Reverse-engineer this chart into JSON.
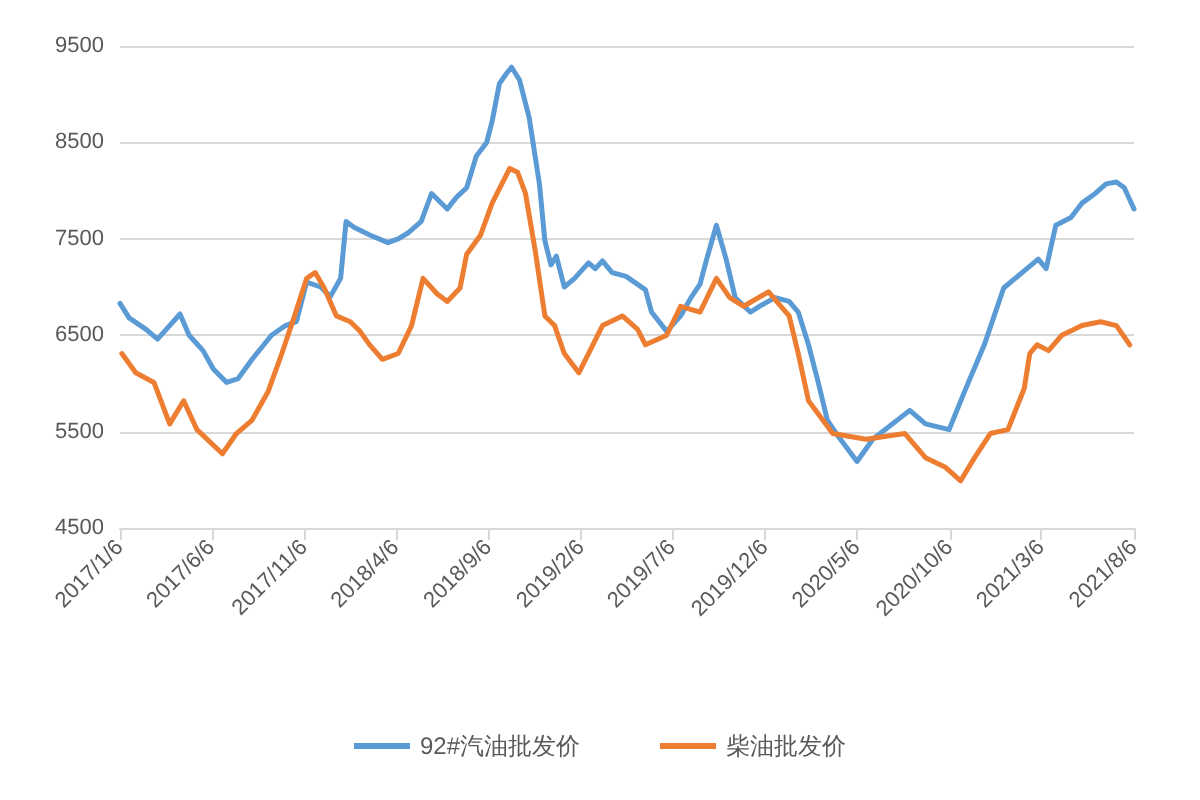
{
  "chart_data": {
    "type": "line",
    "legend": "bottom",
    "grid": "y",
    "marker": "none",
    "line_style": "solid",
    "ylim": [
      4500,
      9500
    ],
    "yticks": [
      4500,
      5500,
      6500,
      7500,
      8500,
      9500
    ],
    "xlim": [
      "2017-01-06",
      "2021-08-06"
    ],
    "xticks": [
      {
        "value": "2017-01-06",
        "label": "2017/1/6"
      },
      {
        "value": "2017-06-06",
        "label": "2017/6/6"
      },
      {
        "value": "2017-11-06",
        "label": "2017/11/6"
      },
      {
        "value": "2018-04-06",
        "label": "2018/4/6"
      },
      {
        "value": "2018-09-06",
        "label": "2018/9/6"
      },
      {
        "value": "2019-02-06",
        "label": "2019/2/6"
      },
      {
        "value": "2019-07-06",
        "label": "2019/7/6"
      },
      {
        "value": "2019-12-06",
        "label": "2019/12/6"
      },
      {
        "value": "2020-05-06",
        "label": "2020/5/6"
      },
      {
        "value": "2020-10-06",
        "label": "2020/10/6"
      },
      {
        "value": "2021-03-06",
        "label": "2021/3/6"
      },
      {
        "value": "2021-08-06",
        "label": "2021/8/6"
      }
    ],
    "series": [
      {
        "name": "92#汽油批发价",
        "color": "#5b9bd5",
        "x": [
          "2017-01-06",
          "2017-01-21",
          "2017-02-18",
          "2017-03-09",
          "2017-04-15",
          "2017-04-30",
          "2017-05-23",
          "2017-06-09",
          "2017-07-01",
          "2017-07-20",
          "2017-08-12",
          "2017-09-13",
          "2017-10-06",
          "2017-10-24",
          "2017-11-10",
          "2017-12-03",
          "2017-12-19",
          "2018-01-05",
          "2018-01-14",
          "2018-01-27",
          "2018-02-22",
          "2018-03-24",
          "2018-04-10",
          "2018-04-26",
          "2018-05-18",
          "2018-06-04",
          "2018-06-30",
          "2018-07-15",
          "2018-08-01",
          "2018-08-17",
          "2018-09-03",
          "2018-09-12",
          "2018-09-24",
          "2018-10-05",
          "2018-10-14",
          "2018-10-27",
          "2018-11-12",
          "2018-11-29",
          "2018-12-08",
          "2018-12-18",
          "2018-12-27",
          "2019-01-09",
          "2019-01-26",
          "2019-02-18",
          "2019-03-01",
          "2019-03-13",
          "2019-03-29",
          "2019-04-21",
          "2019-05-23",
          "2019-06-02",
          "2019-06-27",
          "2019-07-20",
          "2019-08-06",
          "2019-08-21",
          "2019-09-01",
          "2019-09-17",
          "2019-10-03",
          "2019-10-18",
          "2019-11-12",
          "2019-11-27",
          "2019-12-23",
          "2020-01-15",
          "2020-01-30",
          "2020-02-16",
          "2020-03-03",
          "2020-03-18",
          "2020-04-04",
          "2020-05-06",
          "2020-06-01",
          "2020-08-01",
          "2020-08-27",
          "2020-10-05",
          "2020-10-30",
          "2020-12-02",
          "2021-01-03",
          "2021-03-01",
          "2021-03-14",
          "2021-03-30",
          "2021-04-24",
          "2021-05-12",
          "2021-06-03",
          "2021-06-21",
          "2021-07-08",
          "2021-07-21",
          "2021-08-06"
        ],
        "values": [
          6830,
          6680,
          6560,
          6460,
          6720,
          6500,
          6340,
          6150,
          6010,
          6050,
          6250,
          6500,
          6600,
          6640,
          7050,
          7000,
          6900,
          7090,
          7680,
          7620,
          7540,
          7460,
          7500,
          7560,
          7680,
          7970,
          7810,
          7930,
          8030,
          8360,
          8500,
          8720,
          9110,
          9210,
          9280,
          9150,
          8760,
          8070,
          7480,
          7230,
          7320,
          7000,
          7090,
          7250,
          7190,
          7270,
          7150,
          7110,
          6970,
          6740,
          6540,
          6700,
          6890,
          7030,
          7290,
          7640,
          7290,
          6890,
          6740,
          6800,
          6890,
          6850,
          6740,
          6400,
          6010,
          5620,
          5460,
          5190,
          5420,
          5720,
          5580,
          5520,
          5910,
          6400,
          6990,
          7290,
          7190,
          7640,
          7720,
          7870,
          7970,
          8070,
          8090,
          8030,
          7810
        ]
      },
      {
        "name": "柴油批发价",
        "color": "#ed7d31",
        "x": [
          "2017-01-09",
          "2017-02-01",
          "2017-03-03",
          "2017-03-29",
          "2017-04-21",
          "2017-05-13",
          "2017-06-24",
          "2017-07-17",
          "2017-08-12",
          "2017-09-07",
          "2017-09-30",
          "2017-10-21",
          "2017-11-10",
          "2017-11-24",
          "2017-12-09",
          "2017-12-29",
          "2018-01-21",
          "2018-02-06",
          "2018-02-22",
          "2018-03-15",
          "2018-04-10",
          "2018-05-02",
          "2018-05-21",
          "2018-06-13",
          "2018-06-30",
          "2018-07-21",
          "2018-08-01",
          "2018-08-24",
          "2018-09-12",
          "2018-09-28",
          "2018-10-11",
          "2018-10-24",
          "2018-11-06",
          "2018-11-22",
          "2018-12-08",
          "2018-12-24",
          "2019-01-09",
          "2019-02-02",
          "2019-02-18",
          "2019-03-13",
          "2019-04-15",
          "2019-05-10",
          "2019-05-23",
          "2019-06-27",
          "2019-07-20",
          "2019-08-21",
          "2019-09-17",
          "2019-10-09",
          "2019-11-01",
          "2019-12-12",
          "2020-01-15",
          "2020-01-30",
          "2020-02-16",
          "2020-03-27",
          "2020-05-21",
          "2020-07-24",
          "2020-08-27",
          "2020-09-29",
          "2020-10-24",
          "2020-11-16",
          "2020-12-12",
          "2021-01-10",
          "2021-02-06",
          "2021-02-15",
          "2021-02-27",
          "2021-03-18",
          "2021-04-09",
          "2021-05-12",
          "2021-06-12",
          "2021-07-08",
          "2021-07-30"
        ],
        "values": [
          6310,
          6110,
          6010,
          5580,
          5820,
          5520,
          5270,
          5480,
          5620,
          5910,
          6310,
          6700,
          7090,
          7150,
          6990,
          6700,
          6640,
          6540,
          6400,
          6250,
          6310,
          6600,
          7090,
          6930,
          6850,
          6990,
          7340,
          7540,
          7870,
          8070,
          8230,
          8190,
          7970,
          7380,
          6700,
          6600,
          6310,
          6110,
          6310,
          6600,
          6700,
          6560,
          6400,
          6500,
          6800,
          6740,
          7090,
          6890,
          6800,
          6950,
          6700,
          6310,
          5820,
          5480,
          5420,
          5480,
          5230,
          5130,
          4990,
          5230,
          5480,
          5520,
          5950,
          6310,
          6400,
          6340,
          6500,
          6600,
          6640,
          6600,
          6400
        ]
      }
    ]
  }
}
